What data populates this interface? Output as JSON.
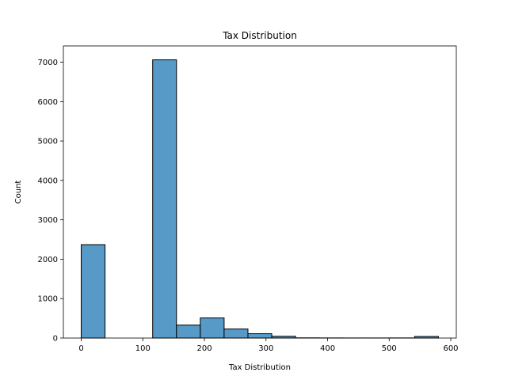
{
  "chart_data": {
    "type": "bar",
    "title": "Tax Distribution",
    "xlabel": "Tax Distribution",
    "ylabel": "Count",
    "bins": [
      {
        "x0": 0,
        "x1": 38.67,
        "count": 2370
      },
      {
        "x0": 38.67,
        "x1": 77.33,
        "count": 0
      },
      {
        "x0": 77.33,
        "x1": 116.0,
        "count": 0
      },
      {
        "x0": 116.0,
        "x1": 154.67,
        "count": 7060
      },
      {
        "x0": 154.67,
        "x1": 193.33,
        "count": 330
      },
      {
        "x0": 193.33,
        "x1": 232.0,
        "count": 510
      },
      {
        "x0": 232.0,
        "x1": 270.67,
        "count": 230
      },
      {
        "x0": 270.67,
        "x1": 309.33,
        "count": 110
      },
      {
        "x0": 309.33,
        "x1": 348.0,
        "count": 45
      },
      {
        "x0": 348.0,
        "x1": 386.67,
        "count": 5
      },
      {
        "x0": 386.67,
        "x1": 425.33,
        "count": 3
      },
      {
        "x0": 425.33,
        "x1": 464.0,
        "count": 2
      },
      {
        "x0": 464.0,
        "x1": 502.67,
        "count": 2
      },
      {
        "x0": 502.67,
        "x1": 541.33,
        "count": 3
      },
      {
        "x0": 541.33,
        "x1": 580.0,
        "count": 40
      }
    ],
    "xlim": [
      -29,
      609
    ],
    "ylim": [
      0,
      7413
    ],
    "xticks": [
      0,
      100,
      200,
      300,
      400,
      500,
      600
    ],
    "yticks": [
      0,
      1000,
      2000,
      3000,
      4000,
      5000,
      6000,
      7000
    ],
    "grid": false,
    "colors": {
      "bar_fill": "#5799c7",
      "bar_edge": "#000000"
    }
  }
}
